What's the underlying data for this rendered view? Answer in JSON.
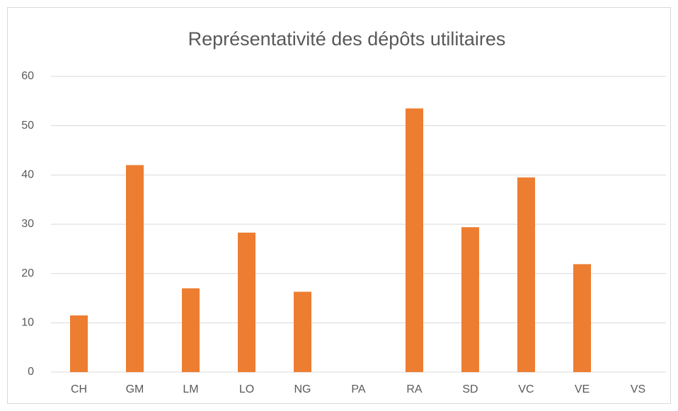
{
  "chart_data": {
    "type": "bar",
    "title": "Représentativité des dépôts utilitaires",
    "categories": [
      "CH",
      "GM",
      "LM",
      "LO",
      "NG",
      "PA",
      "RA",
      "SD",
      "VC",
      "VE",
      "VS"
    ],
    "values": [
      11.5,
      42,
      17,
      28.3,
      16.3,
      0,
      53.5,
      29.4,
      39.5,
      21.9,
      0
    ],
    "color": "#ed7d31",
    "ylim": [
      0,
      60
    ],
    "yticks": [
      0,
      10,
      20,
      30,
      40,
      50,
      60
    ],
    "grid": true
  }
}
